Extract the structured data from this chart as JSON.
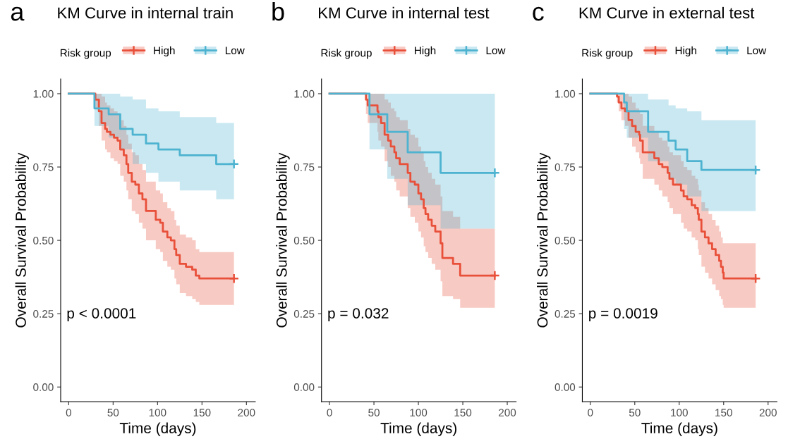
{
  "chart_data": [
    {
      "type": "step",
      "title": "KM Curve in internal train",
      "xlabel": "Time (days)",
      "ylabel": "Overall Survival Probability",
      "legend_title": "Risk group",
      "legend": "top",
      "grid": false,
      "annotations": [
        "a",
        "p < 0.0001"
      ],
      "xlim": [
        -9,
        210
      ],
      "xticks": [
        0,
        50,
        100,
        150,
        200
      ],
      "ylim": [
        -0.05,
        1.05
      ],
      "yticks": [
        {
          "value": 0,
          "label": "0.00"
        },
        {
          "value": 0.25,
          "label": "0.25"
        },
        {
          "value": 0.5,
          "label": "0.50"
        },
        {
          "value": 0.75,
          "label": "0.75"
        },
        {
          "value": 1,
          "label": "1.00"
        }
      ],
      "series": [
        {
          "name": "High",
          "color": "#e8503a",
          "x": [
            0,
            30,
            34,
            37,
            41,
            43,
            47,
            51,
            55,
            58,
            62,
            65,
            67,
            71,
            75,
            79,
            83,
            87,
            98,
            103,
            106,
            111,
            115,
            119,
            121,
            125,
            132,
            139,
            143,
            147,
            186
          ],
          "values": [
            1,
            0.98,
            0.94,
            0.9,
            0.88,
            0.87,
            0.86,
            0.85,
            0.84,
            0.81,
            0.79,
            0.76,
            0.73,
            0.7,
            0.69,
            0.66,
            0.64,
            0.6,
            0.57,
            0.56,
            0.53,
            0.51,
            0.5,
            0.47,
            0.45,
            0.42,
            0.41,
            0.4,
            0.38,
            0.37,
            0.37
          ],
          "upper": [
            1,
            1,
            1,
            0.99,
            0.97,
            0.96,
            0.95,
            0.94,
            0.93,
            0.91,
            0.89,
            0.86,
            0.83,
            0.8,
            0.79,
            0.76,
            0.74,
            0.7,
            0.67,
            0.66,
            0.63,
            0.61,
            0.6,
            0.57,
            0.55,
            0.52,
            0.51,
            0.5,
            0.47,
            0.46,
            0.46
          ],
          "lower": [
            1,
            0.95,
            0.89,
            0.84,
            0.81,
            0.8,
            0.78,
            0.77,
            0.76,
            0.72,
            0.7,
            0.67,
            0.64,
            0.6,
            0.59,
            0.56,
            0.54,
            0.5,
            0.47,
            0.46,
            0.43,
            0.41,
            0.4,
            0.37,
            0.35,
            0.32,
            0.31,
            0.3,
            0.29,
            0.28,
            0.28
          ]
        },
        {
          "name": "Low",
          "color": "#4db3d0",
          "x": [
            0,
            29,
            45,
            58,
            72,
            87,
            101,
            125,
            166,
            186
          ],
          "values": [
            1,
            0.95,
            0.93,
            0.88,
            0.86,
            0.83,
            0.81,
            0.79,
            0.76,
            0.76
          ],
          "upper": [
            1,
            1,
            1,
            0.99,
            0.98,
            0.95,
            0.94,
            0.92,
            0.9,
            0.9
          ],
          "lower": [
            1,
            0.89,
            0.85,
            0.81,
            0.76,
            0.73,
            0.7,
            0.67,
            0.64,
            0.64
          ]
        },
        {
          "type": "scatter",
          "marker": "cross",
          "color": "#e8503a",
          "x": [
            186
          ],
          "values": [
            0.37
          ]
        },
        {
          "type": "scatter",
          "marker": "cross",
          "color": "#4db3d0",
          "x": [
            186
          ],
          "values": [
            0.76
          ]
        }
      ]
    },
    {
      "type": "step",
      "title": "KM Curve in internal test",
      "xlabel": "Time (days)",
      "ylabel": "Overall Survival Probability",
      "legend_title": "Risk group",
      "legend": "top",
      "grid": false,
      "annotations": [
        "b",
        "p = 0.032"
      ],
      "xlim": [
        -9,
        210
      ],
      "xticks": [
        0,
        50,
        100,
        150,
        200
      ],
      "ylim": [
        -0.05,
        1.05
      ],
      "yticks": [
        {
          "value": 0,
          "label": "0.00"
        },
        {
          "value": 0.25,
          "label": "0.25"
        },
        {
          "value": 0.5,
          "label": "0.50"
        },
        {
          "value": 0.75,
          "label": "0.75"
        },
        {
          "value": 1,
          "label": "1.00"
        }
      ],
      "series": [
        {
          "name": "High",
          "color": "#e8503a",
          "x": [
            0,
            41,
            43,
            54,
            55,
            58,
            62,
            66,
            69,
            73,
            75,
            79,
            88,
            91,
            96,
            100,
            103,
            106,
            108,
            111,
            115,
            119,
            125,
            127,
            139,
            147,
            186
          ],
          "values": [
            1,
            0.98,
            0.96,
            0.94,
            0.92,
            0.9,
            0.86,
            0.84,
            0.82,
            0.8,
            0.78,
            0.76,
            0.73,
            0.7,
            0.69,
            0.66,
            0.64,
            0.61,
            0.59,
            0.57,
            0.55,
            0.53,
            0.49,
            0.44,
            0.42,
            0.38,
            0.38
          ],
          "upper": [
            1,
            1,
            1,
            1,
            1,
            1,
            0.98,
            0.97,
            0.95,
            0.94,
            0.92,
            0.91,
            0.88,
            0.86,
            0.85,
            0.82,
            0.8,
            0.77,
            0.75,
            0.73,
            0.71,
            0.69,
            0.65,
            0.6,
            0.58,
            0.54,
            0.54
          ],
          "lower": [
            1,
            0.93,
            0.9,
            0.87,
            0.84,
            0.82,
            0.77,
            0.75,
            0.72,
            0.7,
            0.67,
            0.65,
            0.61,
            0.58,
            0.56,
            0.53,
            0.51,
            0.48,
            0.46,
            0.44,
            0.42,
            0.4,
            0.36,
            0.31,
            0.3,
            0.27,
            0.27
          ]
        },
        {
          "name": "Low",
          "color": "#4db3d0",
          "x": [
            0,
            45,
            65,
            88,
            125,
            186
          ],
          "values": [
            1,
            0.93,
            0.87,
            0.8,
            0.73,
            0.73
          ],
          "upper": [
            1,
            1,
            1,
            1,
            1,
            1
          ],
          "lower": [
            1,
            0.81,
            0.71,
            0.62,
            0.54,
            0.54
          ]
        },
        {
          "type": "scatter",
          "marker": "cross",
          "color": "#e8503a",
          "x": [
            186
          ],
          "values": [
            0.38
          ]
        },
        {
          "type": "scatter",
          "marker": "cross",
          "color": "#4db3d0",
          "x": [
            186
          ],
          "values": [
            0.73
          ]
        }
      ]
    },
    {
      "type": "step",
      "title": "KM Curve in external test",
      "xlabel": "Time (days)",
      "ylabel": "Overall Survival Probability",
      "legend_title": "Risk group",
      "legend": "top",
      "grid": false,
      "annotations": [
        "c",
        "p = 0.0019"
      ],
      "xlim": [
        -9,
        210
      ],
      "xticks": [
        0,
        50,
        100,
        150,
        200
      ],
      "ylim": [
        -0.05,
        1.05
      ],
      "yticks": [
        {
          "value": 0,
          "label": "0.00"
        },
        {
          "value": 0.25,
          "label": "0.25"
        },
        {
          "value": 0.5,
          "label": "0.50"
        },
        {
          "value": 0.75,
          "label": "0.75"
        },
        {
          "value": 1,
          "label": "1.00"
        }
      ],
      "series": [
        {
          "name": "High",
          "color": "#e8503a",
          "x": [
            0,
            30,
            32,
            35,
            39,
            43,
            47,
            51,
            55,
            56,
            59,
            72,
            77,
            81,
            87,
            89,
            93,
            102,
            105,
            109,
            114,
            118,
            121,
            122,
            125,
            129,
            133,
            137,
            141,
            145,
            147,
            149,
            150,
            186
          ],
          "values": [
            1,
            0.99,
            0.97,
            0.95,
            0.94,
            0.91,
            0.89,
            0.87,
            0.86,
            0.84,
            0.8,
            0.78,
            0.76,
            0.75,
            0.73,
            0.71,
            0.69,
            0.67,
            0.65,
            0.64,
            0.62,
            0.61,
            0.59,
            0.57,
            0.53,
            0.51,
            0.49,
            0.47,
            0.45,
            0.43,
            0.41,
            0.39,
            0.37,
            0.37
          ],
          "upper": [
            1,
            1,
            1,
            1,
            1,
            0.99,
            0.97,
            0.95,
            0.94,
            0.93,
            0.89,
            0.87,
            0.85,
            0.84,
            0.82,
            0.8,
            0.79,
            0.77,
            0.75,
            0.74,
            0.72,
            0.71,
            0.69,
            0.67,
            0.63,
            0.61,
            0.59,
            0.57,
            0.55,
            0.53,
            0.51,
            0.49,
            0.49,
            0.49
          ],
          "lower": [
            1,
            0.97,
            0.94,
            0.91,
            0.89,
            0.85,
            0.82,
            0.8,
            0.78,
            0.76,
            0.71,
            0.69,
            0.67,
            0.65,
            0.63,
            0.61,
            0.59,
            0.56,
            0.54,
            0.53,
            0.51,
            0.5,
            0.47,
            0.45,
            0.41,
            0.39,
            0.37,
            0.35,
            0.33,
            0.31,
            0.3,
            0.28,
            0.27,
            0.27
          ]
        },
        {
          "name": "Low",
          "color": "#4db3d0",
          "x": [
            0,
            38,
            41,
            65,
            88,
            96,
            109,
            125,
            186
          ],
          "values": [
            1,
            0.97,
            0.94,
            0.87,
            0.84,
            0.81,
            0.77,
            0.74,
            0.74
          ],
          "upper": [
            1,
            1,
            1,
            0.98,
            0.96,
            0.95,
            0.94,
            0.91,
            0.91
          ],
          "lower": [
            1,
            0.88,
            0.85,
            0.77,
            0.71,
            0.69,
            0.65,
            0.6,
            0.6
          ]
        },
        {
          "type": "scatter",
          "marker": "cross",
          "color": "#e8503a",
          "x": [
            186
          ],
          "values": [
            0.37
          ]
        },
        {
          "type": "scatter",
          "marker": "cross",
          "color": "#4db3d0",
          "x": [
            186
          ],
          "values": [
            0.74
          ]
        }
      ]
    }
  ]
}
